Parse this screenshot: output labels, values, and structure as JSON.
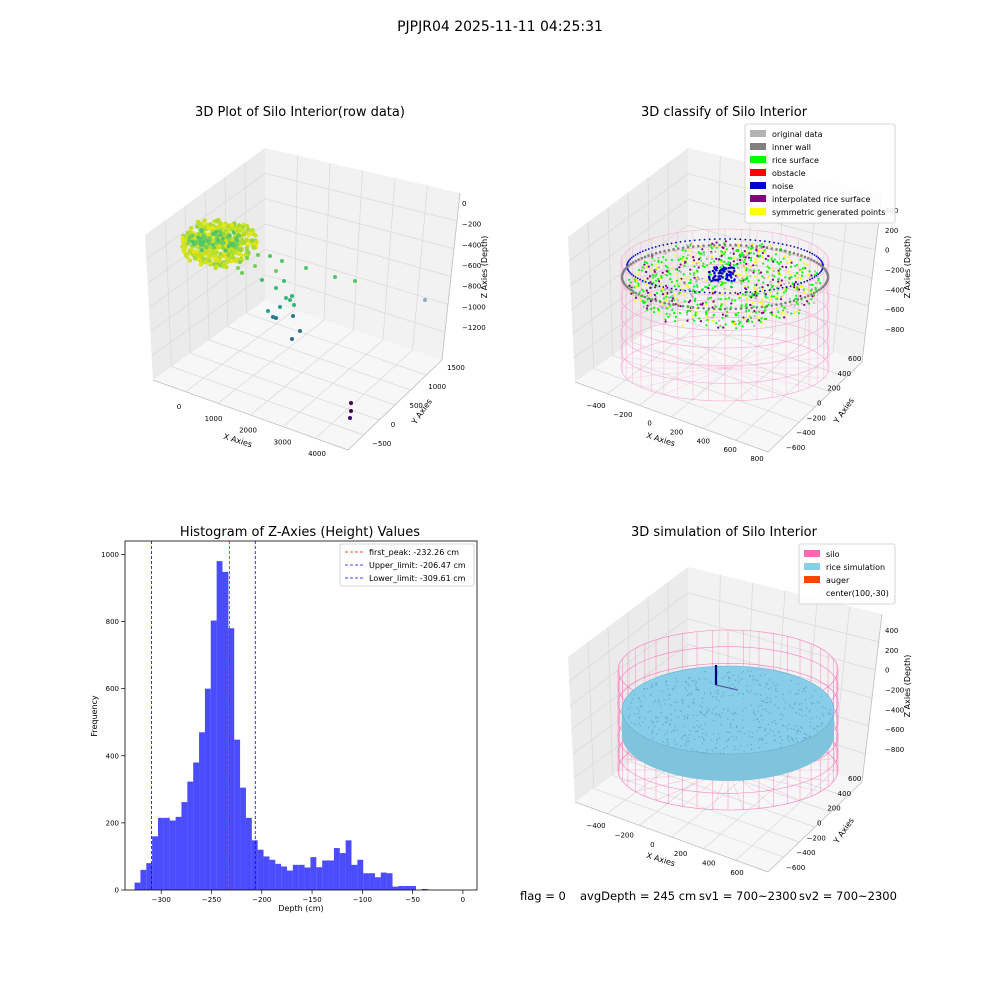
{
  "suptitle": "PJPJR04 2025-11-11 04:25:31",
  "status_line": {
    "flag": "flag = 0",
    "avg_depth": "avgDepth = 245 cm",
    "sv1": "sv1 = 700~2300",
    "sv2": "sv2 = 700~2300"
  },
  "colors": {
    "hist_bar": "#0000ff",
    "first_peak_line": "#ff0000",
    "limit_line": "#0000ff",
    "original_data": "#b3b3b3",
    "inner_wall": "#808080",
    "rice_surface": "#00ff00",
    "obstacle": "#ff0000",
    "noise": "#0000cc",
    "interpolated": "#800080",
    "symmetric": "#ffff00",
    "silo": "#ff69b4",
    "rice_simulation": "#87ceeb",
    "auger": "#ff4500"
  },
  "chart_data": [
    {
      "type": "scatter",
      "title": "3D Plot of Silo Interior(row data)",
      "xlabel": "X Axies",
      "ylabel": "Y Axies",
      "zlabel": "Z Axies (Depth)",
      "x_ticks": [
        "0",
        "1000",
        "2000",
        "3000",
        "4000"
      ],
      "y_ticks": [
        "−500",
        "0",
        "500",
        "1000",
        "1500"
      ],
      "z_ticks": [
        "−1200",
        "−1000",
        "−800",
        "−600",
        "−400",
        "−200",
        "0"
      ],
      "xlim": [
        -500,
        4500
      ],
      "ylim": [
        -700,
        1700
      ],
      "zlim": [
        -1300,
        100
      ],
      "colormap": "viridis (by depth)"
    },
    {
      "type": "scatter",
      "title": "3D classify of Silo Interior",
      "xlabel": "X Axies",
      "ylabel": "Y Axies",
      "zlabel": "Z Axies (Depth)",
      "x_ticks": [
        "−400",
        "−200",
        "0",
        "200",
        "400",
        "600",
        "800"
      ],
      "y_ticks": [
        "−600",
        "−400",
        "−200",
        "0",
        "200",
        "400",
        "600"
      ],
      "z_ticks": [
        "−800",
        "−600",
        "−400",
        "−200",
        "0",
        "200",
        "400"
      ],
      "legend_position": "top-right",
      "legend": [
        {
          "label": "original data",
          "color": "#b3b3b3"
        },
        {
          "label": "inner wall",
          "color": "#808080"
        },
        {
          "label": "rice surface",
          "color": "#00ff00"
        },
        {
          "label": "obstacle",
          "color": "#ff0000"
        },
        {
          "label": "noise",
          "color": "#0000cc"
        },
        {
          "label": "interpolated rice surface",
          "color": "#800080"
        },
        {
          "label": "symmetric generated points",
          "color": "#ffff00"
        }
      ]
    },
    {
      "type": "bar",
      "title": "Histogram of Z-Axies (Height) Values",
      "xlabel": "Depth (cm)",
      "ylabel": "Frequency",
      "xlim": [
        -336,
        14
      ],
      "ylim": [
        0,
        1040
      ],
      "x_ticks": [
        -300,
        -250,
        -200,
        -150,
        -100,
        -50,
        0
      ],
      "y_ticks": [
        0,
        200,
        400,
        600,
        800,
        1000
      ],
      "bin_width": 5.83,
      "bin_start": -326.5,
      "values": [
        22,
        60,
        80,
        160,
        215,
        215,
        207,
        218,
        262,
        323,
        380,
        470,
        600,
        803,
        980,
        948,
        780,
        448,
        305,
        215,
        148,
        120,
        100,
        90,
        78,
        70,
        58,
        75,
        75,
        67,
        98,
        68,
        88,
        88,
        125,
        110,
        148,
        75,
        90,
        50,
        50,
        38,
        52,
        50,
        10,
        12,
        12,
        12,
        0,
        3
      ],
      "lines": [
        {
          "label": "first_peak: -232.26 cm",
          "x": -232.26,
          "color": "#ff0000"
        },
        {
          "label": "Upper_limit: -206.47 cm",
          "x": -206.47,
          "color": "#0000ff"
        },
        {
          "label": "Lower_limit: -309.61 cm",
          "x": -309.61,
          "color": "#0000ff"
        }
      ],
      "legend_position": "top-right",
      "grid": false
    },
    {
      "type": "scatter",
      "title": "3D simulation of Silo Interior",
      "xlabel": "X Axies",
      "ylabel": "Y Axies",
      "zlabel": "Z Axies (Depth)",
      "x_ticks": [
        "−400",
        "−200",
        "0",
        "200",
        "400",
        "600"
      ],
      "y_ticks": [
        "−600",
        "−400",
        "−200",
        "0",
        "200",
        "400",
        "600"
      ],
      "z_ticks": [
        "−800",
        "−600",
        "−400",
        "−200",
        "0",
        "200",
        "400"
      ],
      "legend_position": "top-right",
      "legend": [
        {
          "label": "silo",
          "color": "#ff69b4"
        },
        {
          "label": "rice simulation",
          "color": "#87ceeb"
        },
        {
          "label": "auger",
          "color": "#ff4500"
        },
        {
          "label": "center(100,-30)",
          "color": ""
        }
      ]
    }
  ]
}
